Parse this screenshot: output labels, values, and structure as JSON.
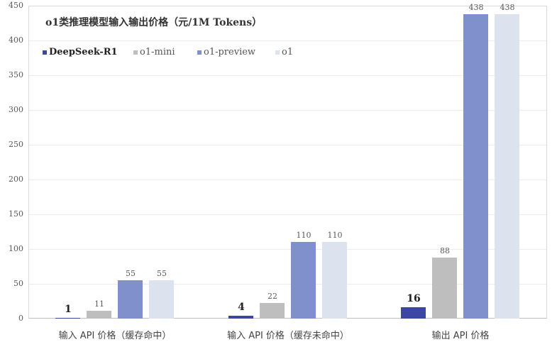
{
  "chart_data": {
    "type": "bar",
    "title": "o1类推理模型输入输出价格（元/1M Tokens）",
    "categories": [
      "输入 API 价格（缓存命中）",
      "输入 API 价格（缓存未命中）",
      "输出 API 价格"
    ],
    "series": [
      {
        "name": "DeepSeek-R1",
        "color": "#3B47A3",
        "values": [
          1,
          4,
          16
        ]
      },
      {
        "name": "o1-mini",
        "color": "#BEBEBE",
        "values": [
          11,
          22,
          88
        ]
      },
      {
        "name": "o1-preview",
        "color": "#7F90CC",
        "values": [
          55,
          110,
          438
        ]
      },
      {
        "name": "o1",
        "color": "#DCE2EE",
        "values": [
          55,
          110,
          438
        ]
      }
    ],
    "yticks": [
      "0",
      "50",
      "100",
      "150",
      "200",
      "250",
      "300",
      "350",
      "400",
      "450"
    ],
    "ylim": [
      0,
      450
    ],
    "xlabel": "",
    "ylabel": "",
    "grid": true,
    "legend_position": "top-left"
  }
}
